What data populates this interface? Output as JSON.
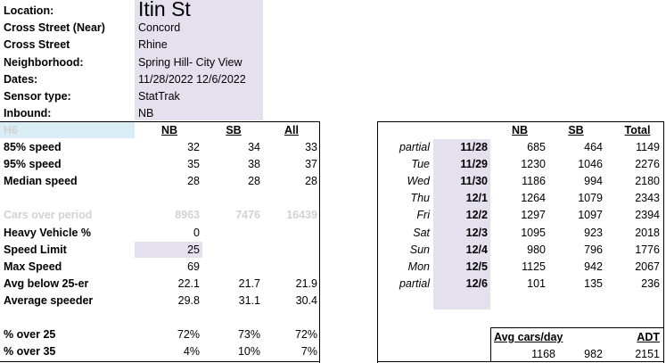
{
  "header": {
    "rows": [
      {
        "label": "Location:",
        "value": "Itin St"
      },
      {
        "label": "Cross Street (Near)",
        "value": "Concord"
      },
      {
        "label": "Cross Street",
        "value": "Rhine"
      },
      {
        "label": "Neighborhood:",
        "value": "Spring Hill- City View"
      },
      {
        "label": "Dates:",
        "value": "11/28/2022 12/6/2022"
      },
      {
        "label": "Sensor type:",
        "value": "StatTrak"
      },
      {
        "label": "Inbound:",
        "value": "NB"
      }
    ]
  },
  "speed_table": {
    "id_label": "H6",
    "columns": [
      "NB",
      "SB",
      "All"
    ],
    "rows": [
      {
        "label": "85% speed",
        "nb": "32",
        "sb": "34",
        "all": "33"
      },
      {
        "label": "95% speed",
        "nb": "35",
        "sb": "38",
        "all": "37"
      },
      {
        "label": "Median speed",
        "nb": "28",
        "sb": "28",
        "all": "28"
      },
      {
        "label": "",
        "nb": "",
        "sb": "",
        "all": ""
      },
      {
        "label": "Cars over period",
        "nb": "8963",
        "sb": "7476",
        "all": "16439"
      },
      {
        "label": "Heavy Vehicle %",
        "nb": "0",
        "sb": "",
        "all": ""
      },
      {
        "label": "Speed Limit",
        "nb": "25",
        "sb": "",
        "all": ""
      },
      {
        "label": "Max Speed",
        "nb": "69",
        "sb": "",
        "all": ""
      },
      {
        "label": "Avg below 25-er",
        "nb": "22.1",
        "sb": "21.7",
        "all": "21.9"
      },
      {
        "label": "Average speeder",
        "nb": "29.8",
        "sb": "31.1",
        "all": "30.4"
      },
      {
        "label": "",
        "nb": "",
        "sb": "",
        "all": ""
      },
      {
        "label": "% over 25",
        "nb": "72%",
        "sb": "73%",
        "all": "72%"
      },
      {
        "label": "% over 35",
        "nb": "4%",
        "sb": "10%",
        "all": "7%"
      }
    ]
  },
  "daily_table": {
    "columns": [
      "NB",
      "SB",
      "Total"
    ],
    "rows": [
      {
        "day": "partial",
        "date": "11/28",
        "nb": "685",
        "sb": "464",
        "total": "1149"
      },
      {
        "day": "Tue",
        "date": "11/29",
        "nb": "1230",
        "sb": "1046",
        "total": "2276"
      },
      {
        "day": "Wed",
        "date": "11/30",
        "nb": "1186",
        "sb": "994",
        "total": "2180"
      },
      {
        "day": "Thu",
        "date": "12/1",
        "nb": "1264",
        "sb": "1079",
        "total": "2343"
      },
      {
        "day": "Fri",
        "date": "12/2",
        "nb": "1297",
        "sb": "1097",
        "total": "2394"
      },
      {
        "day": "Sat",
        "date": "12/3",
        "nb": "1095",
        "sb": "923",
        "total": "2018"
      },
      {
        "day": "Sun",
        "date": "12/4",
        "nb": "980",
        "sb": "796",
        "total": "1776"
      },
      {
        "day": "Mon",
        "date": "12/5",
        "nb": "1125",
        "sb": "942",
        "total": "2067"
      },
      {
        "day": "partial",
        "date": "12/6",
        "nb": "101",
        "sb": "135",
        "total": "236"
      }
    ],
    "summary": {
      "label": "Avg cars/day",
      "adt_label": "ADT",
      "nb": "1168",
      "sb": "982",
      "adt": "2151"
    }
  }
}
